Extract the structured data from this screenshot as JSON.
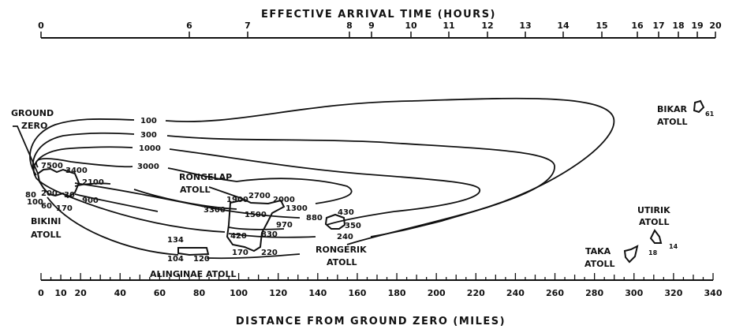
{
  "top_axis": {
    "title": "EFFECTIVE ARRIVAL TIME (HOURS)",
    "ticks": [
      "0",
      "6",
      "7",
      "8",
      "9",
      "10",
      "11",
      "12",
      "13",
      "14",
      "15",
      "16",
      "17",
      "18",
      "19",
      "20"
    ]
  },
  "bottom_axis": {
    "title": "DISTANCE FROM GROUND ZERO (MILES)",
    "ticks": [
      "0",
      "10",
      "20",
      "40",
      "60",
      "80",
      "100",
      "120",
      "140",
      "160",
      "180",
      "200",
      "220",
      "240",
      "260",
      "280",
      "300",
      "320",
      "340"
    ],
    "tick_values": [
      0,
      10,
      20,
      40,
      60,
      80,
      100,
      120,
      140,
      160,
      180,
      200,
      220,
      240,
      260,
      280,
      300,
      320,
      340
    ]
  },
  "contour_labels": [
    "100",
    "300",
    "1000",
    "3000"
  ],
  "places": {
    "ground_zero": [
      "GROUND",
      "ZERO"
    ],
    "bikini": [
      "BIKINI",
      "ATOLL"
    ],
    "rongelap": [
      "RONGELAP",
      "ATOLL"
    ],
    "alinginae": "ALINGINAE ATOLL",
    "rongerik": [
      "RONGERIK",
      "ATOLL"
    ],
    "bikar": [
      "BIKAR",
      "ATOLL"
    ],
    "utirik": [
      "UTIRIK",
      "ATOLL"
    ],
    "taka": [
      "TAKA",
      "ATOLL"
    ]
  },
  "readings": {
    "bikini": [
      "7500",
      "3400",
      "2100",
      "80",
      "200",
      "30",
      "900",
      "100",
      "60",
      "170"
    ],
    "alinginae": [
      "134",
      "104",
      "120"
    ],
    "rongelap": [
      "1900",
      "2700",
      "2000",
      "1300",
      "3300",
      "1500",
      "970",
      "420",
      "830",
      "170",
      "220"
    ],
    "rongerik": [
      "880",
      "430",
      "350",
      "240"
    ],
    "bikar": "61",
    "utirik": "14",
    "taka": "18"
  }
}
